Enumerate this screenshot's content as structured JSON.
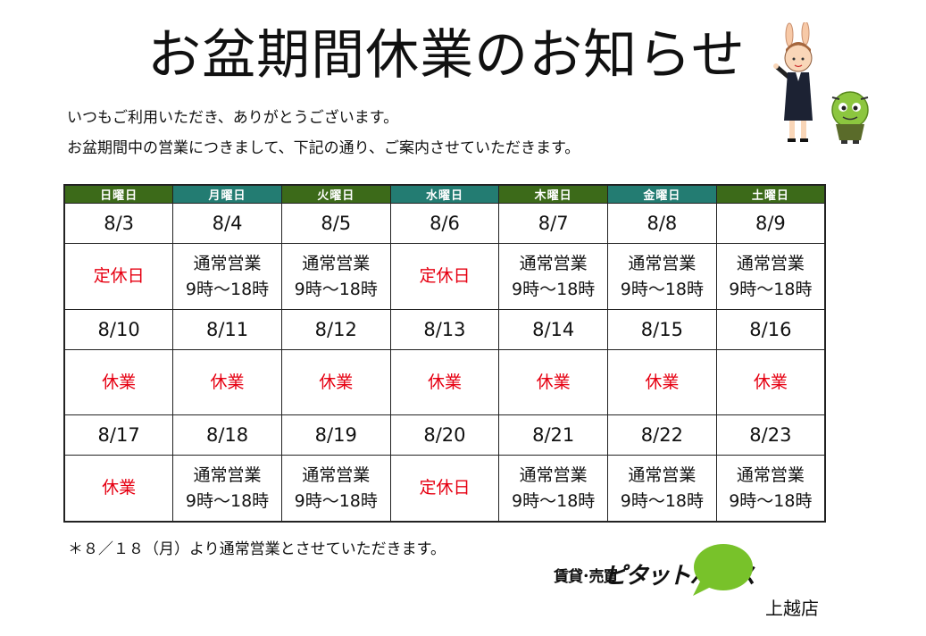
{
  "title": "お盆期間休業のお知らせ",
  "intro": [
    "いつもご利用いただき、ありがとうございます。",
    "お盆期間中の営業につきまして、下記の通り、ご案内させていただきます。"
  ],
  "weekdays": [
    "日曜日",
    "月曜日",
    "火曜日",
    "水曜日",
    "木曜日",
    "金曜日",
    "土曜日"
  ],
  "colors": {
    "header_green": "#3c6a19",
    "header_teal": "#237c72",
    "closed_red": "#e60012",
    "logo_green": "#78c22a"
  },
  "weeks": [
    {
      "dates": [
        "8/3",
        "8/4",
        "8/5",
        "8/6",
        "8/7",
        "8/8",
        "8/9"
      ],
      "status": [
        {
          "type": "closed",
          "text": "定休日"
        },
        {
          "type": "open",
          "line1": "通常営業",
          "line2": "9時～18時"
        },
        {
          "type": "open",
          "line1": "通常営業",
          "line2": "9時～18時"
        },
        {
          "type": "closed",
          "text": "定休日"
        },
        {
          "type": "open",
          "line1": "通常営業",
          "line2": "9時～18時"
        },
        {
          "type": "open",
          "line1": "通常営業",
          "line2": "9時～18時"
        },
        {
          "type": "open",
          "line1": "通常営業",
          "line2": "9時～18時"
        }
      ]
    },
    {
      "dates": [
        "8/10",
        "8/11",
        "8/12",
        "8/13",
        "8/14",
        "8/15",
        "8/16"
      ],
      "status": [
        {
          "type": "closed",
          "text": "休業"
        },
        {
          "type": "closed",
          "text": "休業"
        },
        {
          "type": "closed",
          "text": "休業"
        },
        {
          "type": "closed",
          "text": "休業"
        },
        {
          "type": "closed",
          "text": "休業"
        },
        {
          "type": "closed",
          "text": "休業"
        },
        {
          "type": "closed",
          "text": "休業"
        }
      ]
    },
    {
      "dates": [
        "8/17",
        "8/18",
        "8/19",
        "8/20",
        "8/21",
        "8/22",
        "8/23"
      ],
      "status": [
        {
          "type": "closed",
          "text": "休業"
        },
        {
          "type": "open",
          "line1": "通常営業",
          "line2": "9時～18時"
        },
        {
          "type": "open",
          "line1": "通常営業",
          "line2": "9時～18時"
        },
        {
          "type": "closed",
          "text": "定休日"
        },
        {
          "type": "open",
          "line1": "通常営業",
          "line2": "9時～18時"
        },
        {
          "type": "open",
          "line1": "通常営業",
          "line2": "9時～18時"
        },
        {
          "type": "open",
          "line1": "通常営業",
          "line2": "9時～18時"
        }
      ]
    }
  ],
  "note": "＊８／１８（月）より通常営業とさせていただきます。",
  "logo": {
    "small": "賃貸･売買",
    "main": "ピタットハウス"
  },
  "branch": "上越店"
}
